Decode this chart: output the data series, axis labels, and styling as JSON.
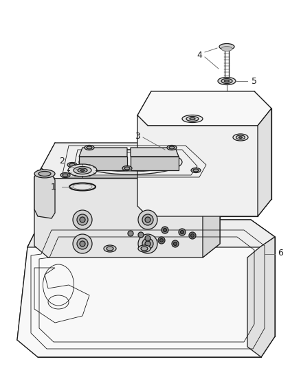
{
  "background_color": "#ffffff",
  "line_color": "#1a1a1a",
  "label_color": "#1a1a1a",
  "label_fontsize": 9,
  "fig_width": 4.38,
  "fig_height": 5.33,
  "dpi": 100
}
